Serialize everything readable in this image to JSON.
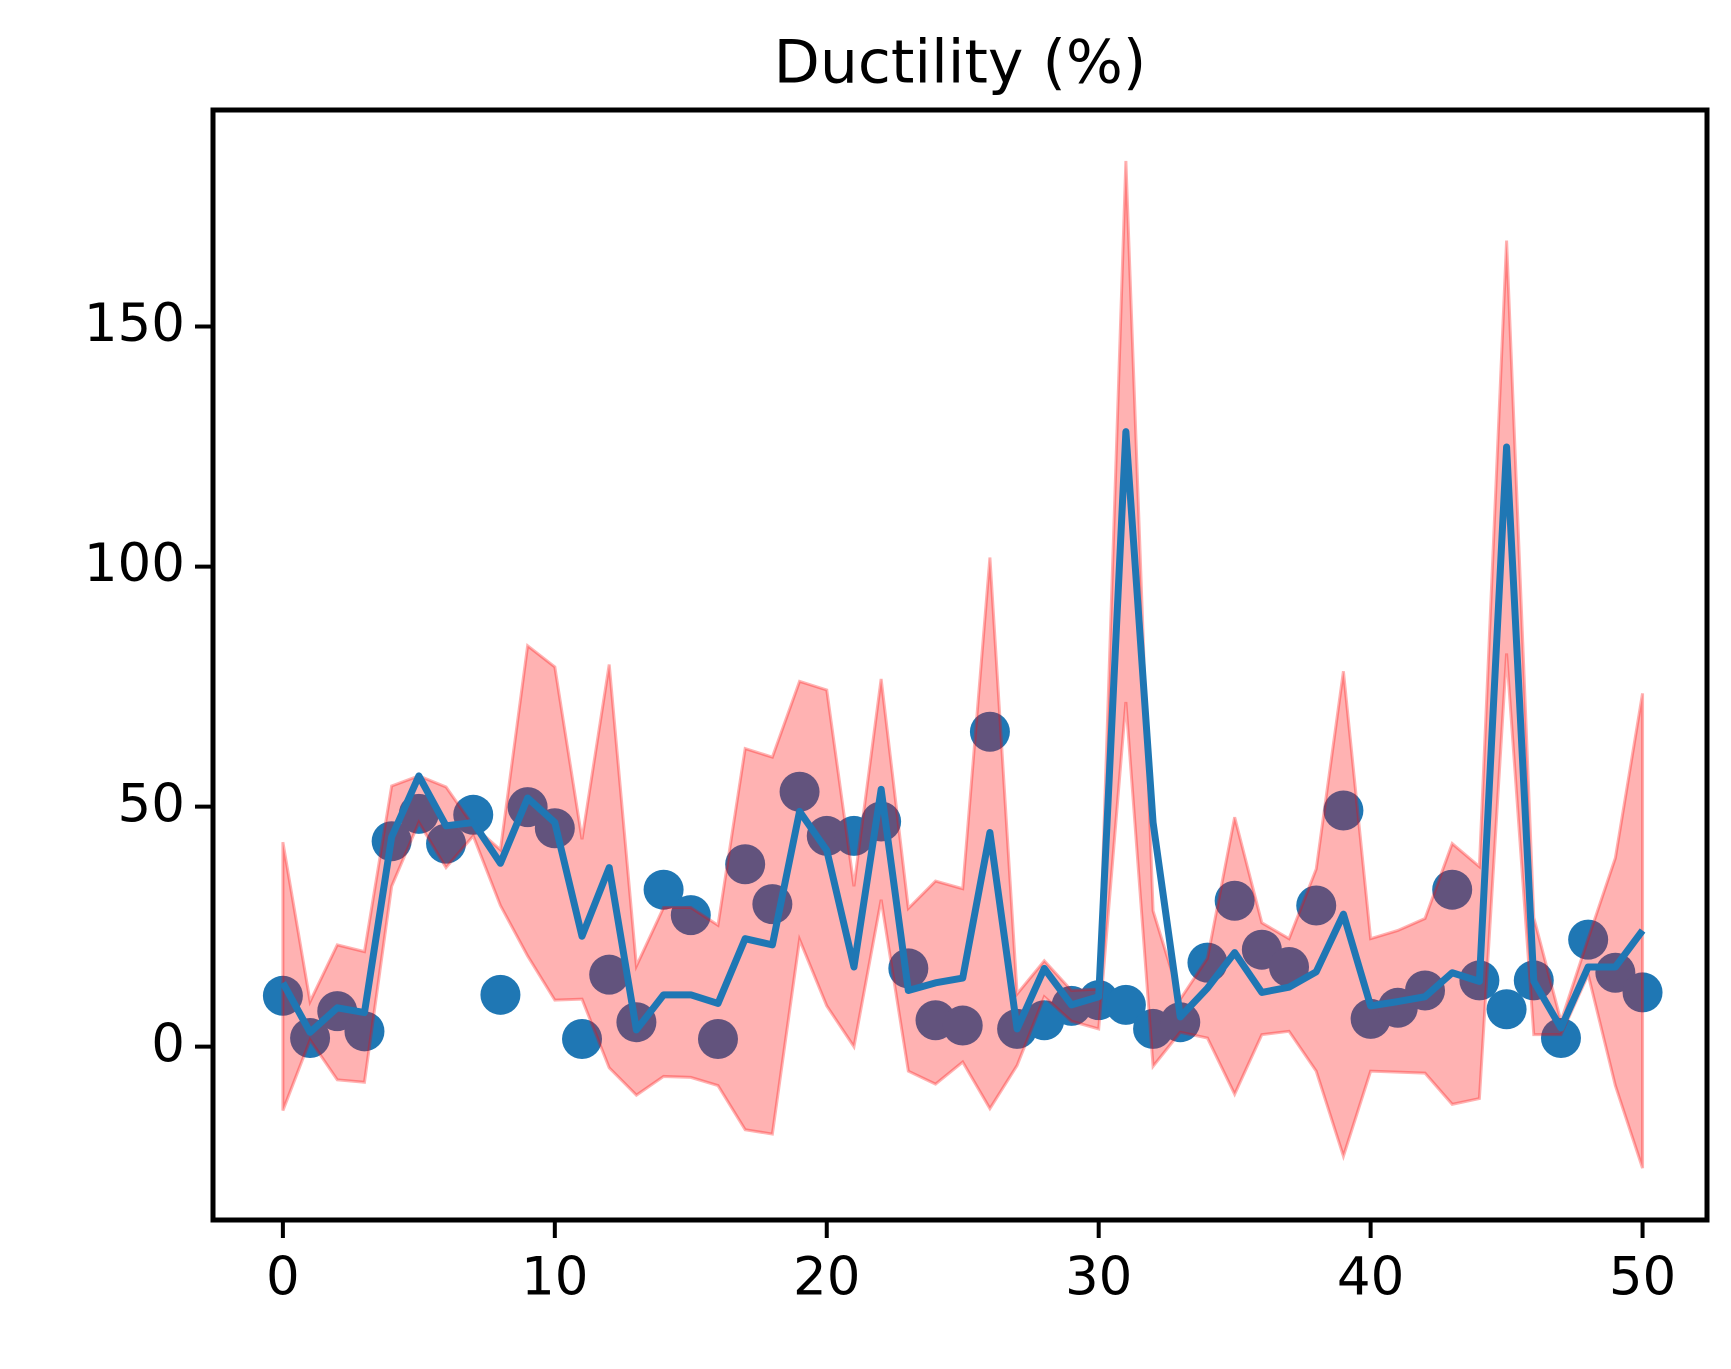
{
  "chart_data": {
    "type": "line",
    "title": "Ductility (%)",
    "x": [
      0,
      1,
      2,
      3,
      4,
      5,
      6,
      7,
      8,
      9,
      10,
      11,
      12,
      13,
      14,
      15,
      16,
      17,
      18,
      19,
      20,
      21,
      22,
      23,
      24,
      25,
      26,
      27,
      28,
      29,
      30,
      31,
      32,
      33,
      34,
      35,
      36,
      37,
      38,
      39,
      40,
      41,
      42,
      43,
      44,
      45,
      46,
      47,
      48,
      49,
      50
    ],
    "points": {
      "color": "#1f77b4",
      "values": [
        10.6,
        1.8,
        7.4,
        3.2,
        42.8,
        48.5,
        42.3,
        48.3,
        10.8,
        49.9,
        45.5,
        1.6,
        15.0,
        5.1,
        32.7,
        27.4,
        1.6,
        38.0,
        29.7,
        53.1,
        43.9,
        43.9,
        46.9,
        16.3,
        5.5,
        4.4,
        65.6,
        3.7,
        5.5,
        8.5,
        9.7,
        8.7,
        3.7,
        5.1,
        17.5,
        30.4,
        20.2,
        16.6,
        29.4,
        49.2,
        5.8,
        8.1,
        11.7,
        32.7,
        13.8,
        7.8,
        13.8,
        1.8,
        22.3,
        15.4,
        11.3
      ]
    },
    "line": {
      "color": "#1f77b4",
      "values": [
        13.3,
        3.0,
        8.1,
        7.1,
        43.7,
        56.4,
        46.0,
        46.7,
        38.2,
        51.8,
        46.7,
        23.0,
        37.3,
        3.5,
        10.8,
        10.8,
        9.0,
        22.5,
        21.2,
        49.0,
        40.9,
        16.6,
        53.6,
        11.7,
        13.3,
        14.3,
        44.6,
        3.7,
        16.3,
        8.7,
        10.4,
        128.1,
        46.7,
        6.2,
        12.2,
        19.6,
        11.3,
        12.4,
        15.6,
        27.6,
        8.5,
        9.4,
        10.4,
        15.4,
        13.6,
        124.9,
        13.6,
        3.9,
        16.6,
        16.6,
        24.2
      ]
    },
    "band": {
      "color": "#ff0000",
      "upper": [
        42.6,
        9.4,
        21.2,
        19.8,
        54.3,
        56.4,
        54.1,
        46.0,
        41.0,
        83.5,
        79.1,
        43.2,
        79.6,
        16.8,
        29.0,
        29.0,
        25.3,
        62.1,
        60.3,
        76.1,
        74.3,
        33.4,
        76.6,
        28.8,
        34.5,
        32.9,
        101.9,
        11.0,
        17.9,
        11.7,
        12.0,
        184.5,
        28.3,
        9.9,
        18.4,
        47.8,
        25.8,
        22.5,
        37.0,
        78.2,
        22.5,
        24.2,
        26.7,
        42.3,
        37.5,
        167.9,
        26.9,
        5.3,
        22.5,
        39.3,
        73.6
      ],
      "lower": [
        -13.3,
        1.4,
        -6.9,
        -7.4,
        33.4,
        46.7,
        37.3,
        43.9,
        29.4,
        18.9,
        9.7,
        9.9,
        -4.4,
        -10.1,
        -6.2,
        -6.4,
        -8.1,
        -17.3,
        -18.2,
        22.3,
        8.5,
        0,
        30.6,
        -5.1,
        -7.8,
        -3.2,
        -12.9,
        -3.9,
        10.4,
        5.3,
        3.7,
        71.8,
        -4.1,
        3.0,
        1.8,
        -9.9,
        2.5,
        3.2,
        -5.1,
        -22.8,
        -5.1,
        -5.3,
        -5.5,
        -12.0,
        -10.8,
        81.9,
        2.5,
        2.5,
        15.0,
        -8.1,
        -25.3
      ]
    },
    "xlim": [
      -2.57,
      52.37
    ],
    "ylim": [
      -36.1,
      195.1
    ],
    "xticks": [
      0,
      10,
      20,
      30,
      40,
      50
    ],
    "yticks": [
      0,
      50,
      100,
      150
    ]
  }
}
